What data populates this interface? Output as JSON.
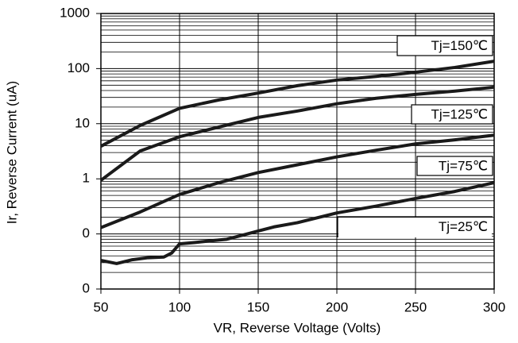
{
  "chart_data": {
    "type": "line",
    "x_label": "VR, Reverse Voltage (Volts)",
    "y_label": "Ir, Reverse Current (uA)",
    "log_scale_y": true,
    "grid": true,
    "xlim": [
      50,
      300
    ],
    "xticks": [
      50,
      100,
      150,
      200,
      250,
      300
    ],
    "ylim": [
      0.01,
      1000
    ],
    "yticks": [
      {
        "value": 0.01,
        "label": "0"
      },
      {
        "value": 0.1,
        "label": "0"
      },
      1,
      10,
      100,
      1000
    ],
    "series": [
      {
        "name": "Tj=150℃",
        "color": "#1a1a1a",
        "x": [
          50,
          75,
          100,
          125,
          150,
          175,
          200,
          225,
          250,
          275,
          300
        ],
        "values": [
          3.9,
          9.3,
          19,
          27,
          36,
          49,
          62,
          72,
          86,
          105,
          136
        ]
      },
      {
        "name": "Tj=125℃",
        "color": "#1a1a1a",
        "x": [
          50,
          75,
          100,
          125,
          150,
          175,
          200,
          225,
          250,
          275,
          300
        ],
        "values": [
          0.94,
          3.2,
          5.8,
          8.7,
          13,
          17,
          23,
          29,
          34,
          39,
          46
        ]
      },
      {
        "name": "Tj=75℃",
        "color": "#1a1a1a",
        "x": [
          50,
          75,
          100,
          125,
          150,
          175,
          200,
          225,
          250,
          275,
          300
        ],
        "values": [
          0.13,
          0.25,
          0.52,
          0.85,
          1.3,
          1.8,
          2.5,
          3.3,
          4.3,
          5.1,
          6.2
        ]
      },
      {
        "name": "Tj=25℃",
        "color": "#1a1a1a",
        "x": [
          50,
          60,
          70,
          80,
          90,
          95,
          100,
          110,
          120,
          130,
          140,
          150,
          160,
          175,
          200,
          225,
          250,
          275,
          300
        ],
        "values": [
          0.033,
          0.029,
          0.034,
          0.037,
          0.038,
          0.045,
          0.066,
          0.07,
          0.075,
          0.08,
          0.095,
          0.113,
          0.134,
          0.16,
          0.24,
          0.32,
          0.44,
          0.59,
          0.85
        ]
      }
    ]
  }
}
